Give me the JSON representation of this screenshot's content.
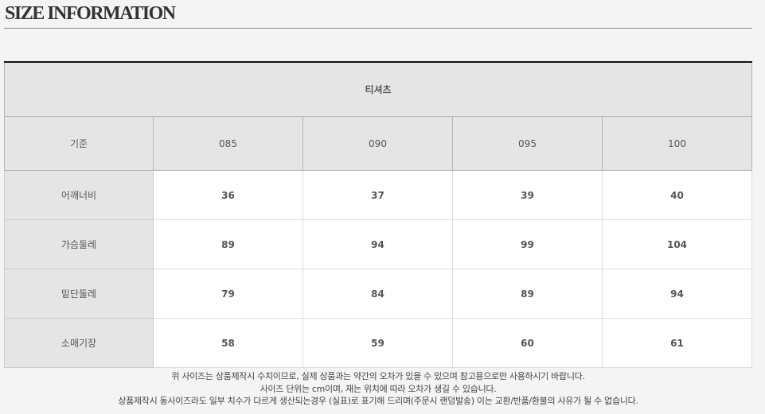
{
  "title": "SIZE INFORMATION",
  "table": {
    "product": "티셔츠",
    "criteria_label": "기준",
    "sizes": [
      "085",
      "090",
      "095",
      "100"
    ],
    "rows": [
      {
        "label": "어깨너비",
        "values": [
          "36",
          "37",
          "39",
          "40"
        ]
      },
      {
        "label": "가슴둘레",
        "values": [
          "89",
          "94",
          "99",
          "104"
        ]
      },
      {
        "label": "밑단둘레",
        "values": [
          "79",
          "84",
          "89",
          "94"
        ]
      },
      {
        "label": "소매기장",
        "values": [
          "58",
          "59",
          "60",
          "61"
        ]
      }
    ]
  },
  "notes": [
    "위 사이즈는 상품제작시 수치이므로, 실제 상품과는 약간의 오차가 있을 수 있으며 참고용으로만 사용하시기 바랍니다.",
    "사이즈 단위는 cm이며, 재는 위치에 따라 오차가 생길 수 있습니다.",
    "상품제작시 동사이즈라도 일부 치수가 다르게 생산되는경우 (실표)로 표기해 드리며(주문시 랜덤발송) 이는 교환/반품/환불의 사유가 될 수 없습니다."
  ]
}
